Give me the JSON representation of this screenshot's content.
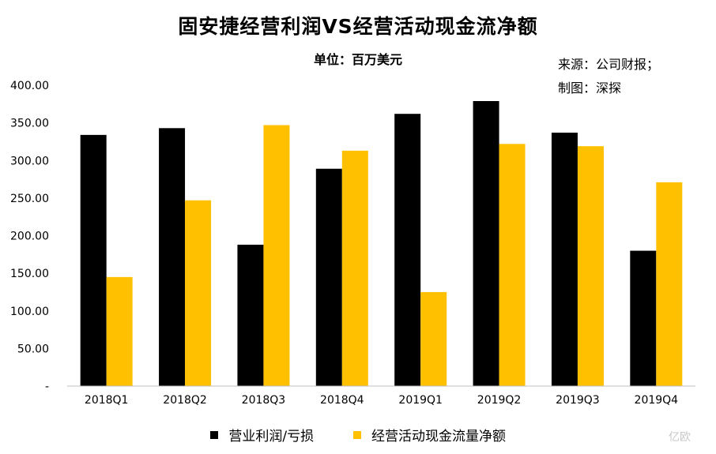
{
  "header": {
    "title": "固安捷经营利润VS经营活动现金流净额",
    "subtitle": "单位：百万美元",
    "source": "来源：公司财报；",
    "credit": "制图：深探"
  },
  "watermark": "亿欧",
  "colors": {
    "series1": "#000000",
    "series2": "#FFC000",
    "axis": "#bfbfbf"
  },
  "chart_data": {
    "type": "bar",
    "categories": [
      "2018Q1",
      "2018Q2",
      "2018Q3",
      "2018Q4",
      "2019Q1",
      "2019Q2",
      "2019Q3",
      "2019Q4"
    ],
    "series": [
      {
        "name": "营业利润/亏损",
        "values": [
          334,
          343,
          188,
          289,
          362,
          379,
          337,
          180
        ]
      },
      {
        "name": "经营活动现金流量净额",
        "values": [
          145,
          247,
          347,
          313,
          125,
          322,
          319,
          271
        ]
      }
    ],
    "yticks": [
      "-",
      "50.00",
      "100.00",
      "150.00",
      "200.00",
      "250.00",
      "300.00",
      "350.00",
      "400.00"
    ],
    "ylim": [
      0,
      400
    ],
    "grid": false,
    "legend_position": "bottom"
  }
}
